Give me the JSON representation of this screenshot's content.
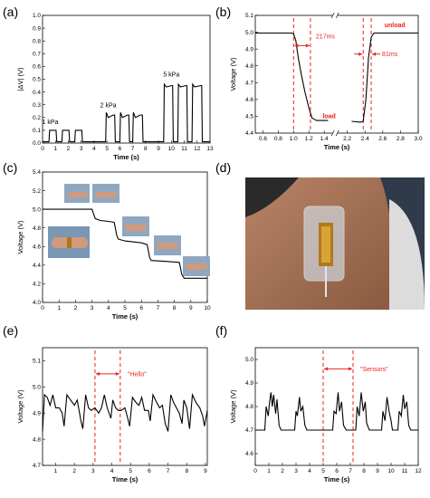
{
  "colors": {
    "line": "#000000",
    "annotation": "#e8231f",
    "axis": "#000000"
  },
  "panels": {
    "a": {
      "label": "(a)"
    },
    "b": {
      "label": "(b)"
    },
    "c": {
      "label": "(c)"
    },
    "d": {
      "label": "(d)"
    },
    "e": {
      "label": "(e)"
    },
    "f": {
      "label": "(f)"
    }
  },
  "chart_data": [
    {
      "id": "a",
      "type": "line",
      "xlabel": "Time (s)",
      "ylabel": "|ΔV| (V)",
      "xlim": [
        0,
        13
      ],
      "ylim": [
        0,
        1.0
      ],
      "xticks": [
        0,
        1,
        2,
        3,
        4,
        5,
        6,
        7,
        8,
        9,
        10,
        11,
        12,
        13
      ],
      "yticks": [
        0.0,
        0.1,
        0.2,
        0.3,
        0.4,
        0.5,
        0.6,
        0.7,
        0.8,
        0.9,
        1.0
      ],
      "annotations": [
        {
          "text": "1 kPa",
          "x": 0.6,
          "y": 0.15
        },
        {
          "text": "2 kPa",
          "x": 5.1,
          "y": 0.28
        },
        {
          "text": "5 kPa",
          "x": 10.0,
          "y": 0.52
        }
      ],
      "series": [
        {
          "points": [
            [
              0,
              0.01
            ],
            [
              0.5,
              0.01
            ],
            [
              0.55,
              0.1
            ],
            [
              1.05,
              0.1
            ],
            [
              1.1,
              0.01
            ],
            [
              1.5,
              0.01
            ],
            [
              1.55,
              0.1
            ],
            [
              2.05,
              0.1
            ],
            [
              2.1,
              0.01
            ],
            [
              2.5,
              0.01
            ],
            [
              2.55,
              0.1
            ],
            [
              3.05,
              0.1
            ],
            [
              3.1,
              0.01
            ],
            [
              4.9,
              0.01
            ],
            [
              4.95,
              0.24
            ],
            [
              5.1,
              0.2
            ],
            [
              5.5,
              0.22
            ],
            [
              5.6,
              0.22
            ],
            [
              5.65,
              0.01
            ],
            [
              6.0,
              0.01
            ],
            [
              6.05,
              0.24
            ],
            [
              6.2,
              0.2
            ],
            [
              6.6,
              0.22
            ],
            [
              6.7,
              0.22
            ],
            [
              6.75,
              0.01
            ],
            [
              7.0,
              0.01
            ],
            [
              7.05,
              0.24
            ],
            [
              7.2,
              0.2
            ],
            [
              7.6,
              0.22
            ],
            [
              7.75,
              0.22
            ],
            [
              7.8,
              0.01
            ],
            [
              9.4,
              0.01
            ],
            [
              9.45,
              0.46
            ],
            [
              9.6,
              0.44
            ],
            [
              10.05,
              0.45
            ],
            [
              10.1,
              0.45
            ],
            [
              10.15,
              0.01
            ],
            [
              10.5,
              0.01
            ],
            [
              10.55,
              0.46
            ],
            [
              10.7,
              0.44
            ],
            [
              11.15,
              0.45
            ],
            [
              11.2,
              0.45
            ],
            [
              11.25,
              0.01
            ],
            [
              11.6,
              0.01
            ],
            [
              11.65,
              0.46
            ],
            [
              11.8,
              0.44
            ],
            [
              12.3,
              0.45
            ],
            [
              12.35,
              0.45
            ],
            [
              12.4,
              0.01
            ],
            [
              13,
              0.01
            ]
          ]
        }
      ]
    },
    {
      "id": "b",
      "type": "line",
      "xlabel": "Time (s)",
      "ylabel": "Voltage (V)",
      "xlim": [
        0.5,
        3.0
      ],
      "ylim": [
        4.4,
        5.1
      ],
      "xticks": [
        "0.6",
        "0.8",
        "1.0",
        "1.2",
        "1.4",
        "2.2",
        "2.4",
        "2.6",
        "2.8",
        "3.0"
      ],
      "yticks": [
        4.4,
        4.5,
        4.6,
        4.7,
        4.8,
        4.9,
        5.0,
        5.1
      ],
      "axis_break_between": [
        "1.4",
        "2.2"
      ],
      "annotations": [
        {
          "text": "217ms",
          "color": "#e8231f"
        },
        {
          "text": "81ms",
          "color": "#e8231f"
        },
        {
          "text": "load"
        },
        {
          "text": "unload"
        }
      ],
      "series": [
        {
          "points": [
            [
              0.5,
              4.995
            ],
            [
              0.98,
              4.995
            ],
            [
              1.0,
              4.99
            ],
            [
              1.03,
              4.95
            ],
            [
              1.06,
              4.85
            ],
            [
              1.1,
              4.75
            ],
            [
              1.15,
              4.64
            ],
            [
              1.2,
              4.55
            ],
            [
              1.24,
              4.49
            ],
            [
              1.3,
              4.475
            ],
            [
              1.45,
              4.475
            ],
            [
              1.6,
              4.472
            ],
            [
              2.25,
              4.47
            ],
            [
              2.35,
              4.465
            ],
            [
              2.38,
              4.47
            ],
            [
              2.41,
              4.6
            ],
            [
              2.44,
              4.85
            ],
            [
              2.47,
              4.97
            ],
            [
              2.5,
              4.995
            ],
            [
              3.0,
              4.995
            ]
          ]
        }
      ],
      "red_lines_x": [
        "1.0",
        "1.22",
        "2.38",
        "2.47"
      ]
    },
    {
      "id": "c",
      "type": "line",
      "xlabel": "Time (s)",
      "ylabel": "Voltage (V)",
      "xlim": [
        0,
        10
      ],
      "ylim": [
        4.0,
        5.4
      ],
      "xticks": [
        0,
        1,
        2,
        3,
        4,
        5,
        6,
        7,
        8,
        9,
        10
      ],
      "yticks": [
        4.0,
        4.2,
        4.4,
        4.6,
        4.8,
        5.0,
        5.2,
        5.4
      ],
      "series": [
        {
          "points": [
            [
              0,
              5.0
            ],
            [
              3.0,
              5.0
            ],
            [
              3.2,
              4.9
            ],
            [
              3.5,
              4.88
            ],
            [
              4.0,
              4.87
            ],
            [
              4.35,
              4.86
            ],
            [
              4.5,
              4.72
            ],
            [
              4.6,
              4.68
            ],
            [
              5.0,
              4.66
            ],
            [
              6.0,
              4.64
            ],
            [
              6.35,
              4.62
            ],
            [
              6.5,
              4.48
            ],
            [
              6.6,
              4.45
            ],
            [
              7.5,
              4.44
            ],
            [
              8.3,
              4.43
            ],
            [
              8.45,
              4.3
            ],
            [
              8.6,
              4.26
            ],
            [
              10,
              4.26
            ]
          ]
        }
      ]
    },
    {
      "id": "e",
      "type": "line",
      "xlabel": "Time (s)",
      "ylabel": "Voltage (V)",
      "xlim": [
        0.3,
        9.1
      ],
      "ylim": [
        4.7,
        5.15
      ],
      "xticks": [
        1,
        2,
        3,
        4,
        5,
        6,
        7,
        8,
        9
      ],
      "yticks": [
        4.7,
        4.8,
        4.9,
        5.0,
        5.1
      ],
      "annotations": [
        {
          "text": "\"Hello\"",
          "color": "#e8231f"
        }
      ],
      "red_lines_x": [
        3.1,
        4.45
      ],
      "series": [
        {
          "points": [
            [
              0.3,
              4.83
            ],
            [
              0.4,
              4.97
            ],
            [
              0.55,
              4.96
            ],
            [
              0.7,
              4.93
            ],
            [
              0.85,
              4.97
            ],
            [
              1.0,
              4.92
            ],
            [
              1.2,
              4.92
            ],
            [
              1.35,
              4.9
            ],
            [
              1.45,
              4.85
            ],
            [
              1.6,
              4.97
            ],
            [
              1.8,
              4.95
            ],
            [
              2.0,
              4.93
            ],
            [
              2.15,
              4.95
            ],
            [
              2.35,
              4.87
            ],
            [
              2.45,
              4.84
            ],
            [
              2.6,
              4.97
            ],
            [
              2.75,
              4.92
            ],
            [
              2.9,
              4.91
            ],
            [
              3.1,
              4.92
            ],
            [
              3.3,
              4.9
            ],
            [
              3.45,
              4.92
            ],
            [
              3.6,
              4.97
            ],
            [
              3.75,
              4.92
            ],
            [
              3.95,
              4.88
            ],
            [
              4.05,
              4.95
            ],
            [
              4.2,
              4.92
            ],
            [
              4.35,
              4.91
            ],
            [
              4.5,
              4.91
            ],
            [
              4.7,
              4.92
            ],
            [
              4.85,
              4.88
            ],
            [
              4.95,
              4.85
            ],
            [
              5.1,
              4.96
            ],
            [
              5.3,
              4.94
            ],
            [
              5.45,
              4.93
            ],
            [
              5.6,
              4.96
            ],
            [
              5.75,
              4.91
            ],
            [
              5.95,
              4.91
            ],
            [
              6.05,
              4.87
            ],
            [
              6.2,
              4.97
            ],
            [
              6.4,
              4.94
            ],
            [
              6.55,
              4.92
            ],
            [
              6.7,
              4.93
            ],
            [
              6.85,
              4.86
            ],
            [
              7.0,
              4.83
            ],
            [
              7.15,
              4.97
            ],
            [
              7.3,
              4.94
            ],
            [
              7.45,
              4.92
            ],
            [
              7.6,
              4.9
            ],
            [
              7.75,
              4.86
            ],
            [
              7.85,
              4.95
            ],
            [
              8.0,
              4.92
            ],
            [
              8.15,
              4.84
            ],
            [
              8.3,
              4.97
            ],
            [
              8.5,
              4.94
            ],
            [
              8.7,
              4.92
            ],
            [
              8.85,
              4.89
            ],
            [
              8.95,
              4.85
            ],
            [
              9.1,
              4.91
            ]
          ]
        }
      ]
    },
    {
      "id": "f",
      "type": "line",
      "xlabel": "Time (s)",
      "ylabel": "Voltage (V)",
      "xlim": [
        0,
        12
      ],
      "ylim": [
        4.55,
        5.05
      ],
      "xticks": [
        0,
        1,
        2,
        3,
        4,
        5,
        6,
        7,
        8,
        9,
        10,
        11,
        12
      ],
      "yticks": [
        4.6,
        4.7,
        4.8,
        4.9,
        5.0
      ],
      "annotations": [
        {
          "text": "\"Sensors\"",
          "color": "#e8231f"
        }
      ],
      "red_lines_x": [
        5.0,
        7.2
      ],
      "series": [
        {
          "points": [
            [
              0,
              4.7
            ],
            [
              0.7,
              4.7
            ],
            [
              0.8,
              4.8
            ],
            [
              0.95,
              4.76
            ],
            [
              1.05,
              4.82
            ],
            [
              1.15,
              4.86
            ],
            [
              1.25,
              4.8
            ],
            [
              1.35,
              4.85
            ],
            [
              1.5,
              4.77
            ],
            [
              1.6,
              4.83
            ],
            [
              1.75,
              4.72
            ],
            [
              1.9,
              4.7
            ],
            [
              2.9,
              4.7
            ],
            [
              3.0,
              4.78
            ],
            [
              3.1,
              4.76
            ],
            [
              3.25,
              4.84
            ],
            [
              3.35,
              4.78
            ],
            [
              3.5,
              4.8
            ],
            [
              3.65,
              4.72
            ],
            [
              3.8,
              4.7
            ],
            [
              4.9,
              4.7
            ],
            [
              5.7,
              4.7
            ],
            [
              5.8,
              4.78
            ],
            [
              5.95,
              4.77
            ],
            [
              6.1,
              4.86
            ],
            [
              6.2,
              4.78
            ],
            [
              6.35,
              4.82
            ],
            [
              6.5,
              4.72
            ],
            [
              6.7,
              4.7
            ],
            [
              7.4,
              4.7
            ],
            [
              7.5,
              4.8
            ],
            [
              7.65,
              4.76
            ],
            [
              7.8,
              4.86
            ],
            [
              7.95,
              4.78
            ],
            [
              8.1,
              4.82
            ],
            [
              8.2,
              4.73
            ],
            [
              8.4,
              4.7
            ],
            [
              9.3,
              4.7
            ],
            [
              9.4,
              4.78
            ],
            [
              9.55,
              4.74
            ],
            [
              9.7,
              4.84
            ],
            [
              9.85,
              4.78
            ],
            [
              10.0,
              4.74
            ],
            [
              10.1,
              4.7
            ],
            [
              10.5,
              4.7
            ],
            [
              10.6,
              4.78
            ],
            [
              10.75,
              4.76
            ],
            [
              10.9,
              4.85
            ],
            [
              11.0,
              4.79
            ],
            [
              11.15,
              4.82
            ],
            [
              11.3,
              4.72
            ],
            [
              11.45,
              4.7
            ],
            [
              12,
              4.7
            ]
          ]
        }
      ]
    }
  ]
}
